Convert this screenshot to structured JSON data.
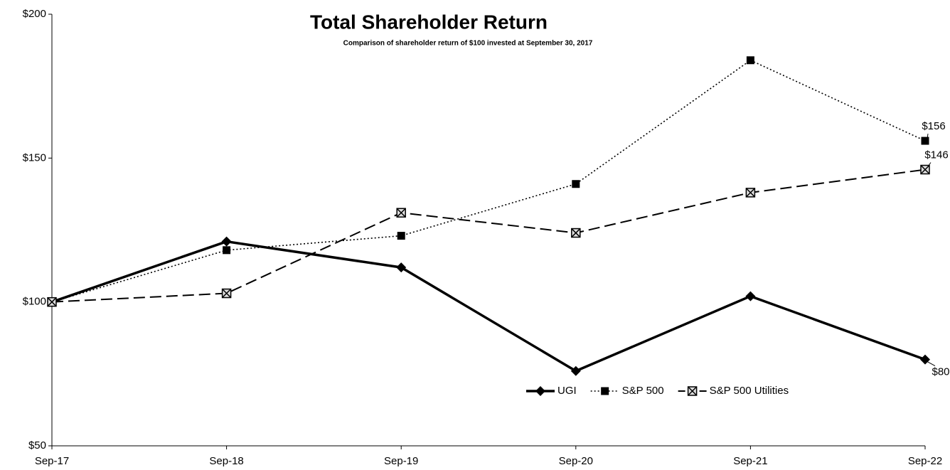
{
  "chart_data": {
    "type": "line",
    "title": "Total Shareholder Return",
    "subtitle": "Comparison of shareholder return of $100 invested at September 30, 2017",
    "categories": [
      "Sep-17",
      "Sep-18",
      "Sep-19",
      "Sep-20",
      "Sep-21",
      "Sep-22"
    ],
    "series": [
      {
        "name": "UGI",
        "color": "#000000",
        "line_style": "solid",
        "marker": "diamond",
        "values": [
          100,
          121,
          112,
          76,
          102,
          80
        ],
        "value_labels": [
          null,
          null,
          null,
          null,
          null,
          "$80"
        ]
      },
      {
        "name": "S&P 500",
        "color": "#000000",
        "line_style": "dotted",
        "marker": "square",
        "values": [
          100,
          118,
          123,
          141,
          184,
          156
        ],
        "value_labels": [
          null,
          null,
          null,
          null,
          null,
          "$156"
        ]
      },
      {
        "name": "S&P 500 Utilities",
        "color": "#000000",
        "line_style": "dashed",
        "marker": "x-square",
        "values": [
          100,
          103,
          131,
          124,
          138,
          146
        ],
        "value_labels": [
          null,
          null,
          null,
          null,
          null,
          "$146"
        ]
      }
    ],
    "ylim": [
      50,
      200
    ],
    "yticks": [
      {
        "value": 50,
        "label": "$50"
      },
      {
        "value": 100,
        "label": "$100"
      },
      {
        "value": 150,
        "label": "$150"
      },
      {
        "value": 200,
        "label": "$200"
      }
    ],
    "grid": false,
    "legend": "bottom-right"
  }
}
